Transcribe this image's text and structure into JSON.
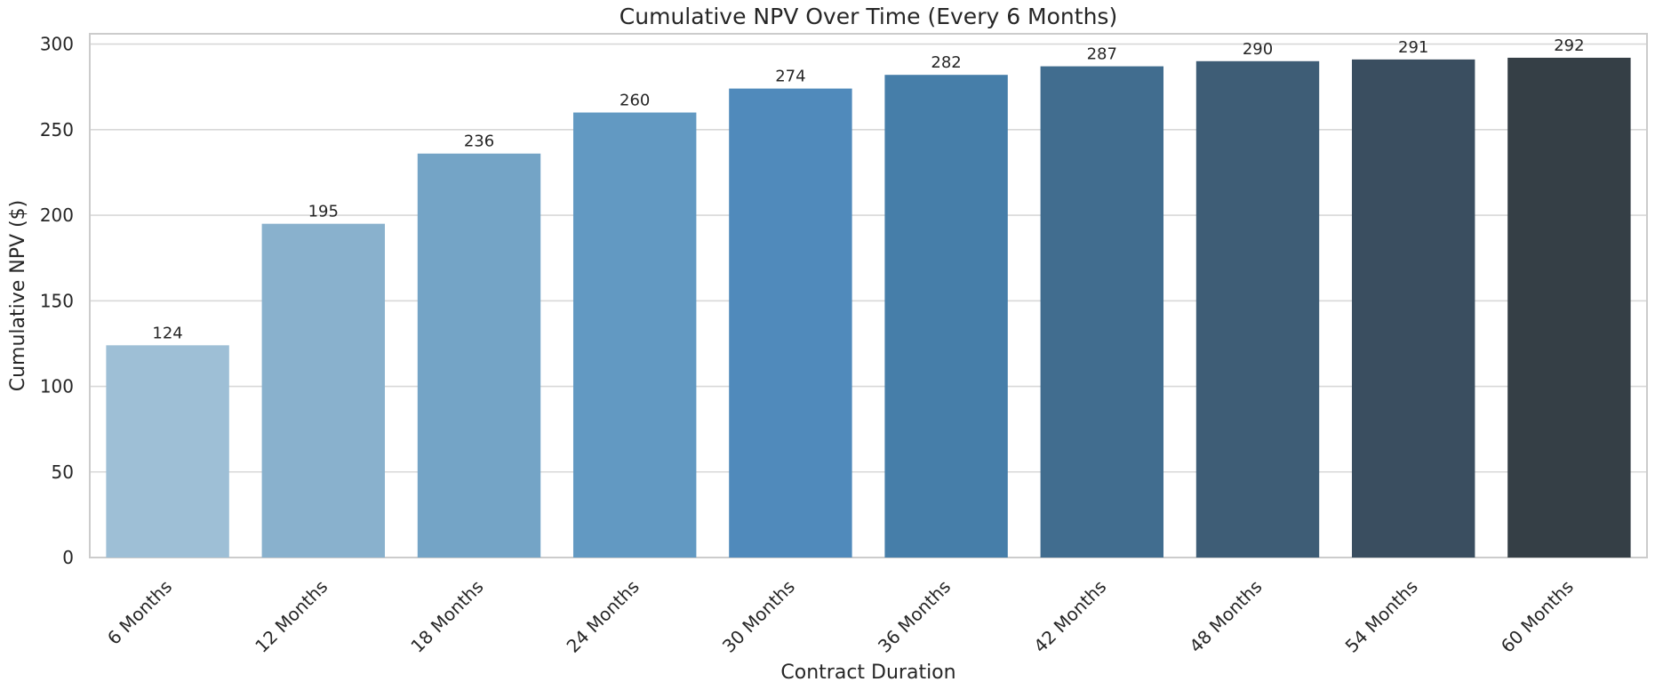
{
  "chart_data": {
    "type": "bar",
    "title": "Cumulative NPV Over Time (Every 6 Months)",
    "xlabel": "Contract Duration",
    "ylabel": "Cumulative NPV ($)",
    "categories": [
      "6 Months",
      "12 Months",
      "18 Months",
      "24 Months",
      "30 Months",
      "36 Months",
      "42 Months",
      "48 Months",
      "54 Months",
      "60 Months"
    ],
    "values": [
      124,
      195,
      236,
      260,
      274,
      282,
      287,
      290,
      291,
      292
    ],
    "data_labels": [
      "124",
      "195",
      "236",
      "260",
      "274",
      "282",
      "287",
      "290",
      "291",
      "292"
    ],
    "colors": [
      "#9ebfd6",
      "#89b1cd",
      "#74a4c6",
      "#6299c2",
      "#508abb",
      "#467ea9",
      "#416d8f",
      "#3e5d76",
      "#3a4e60",
      "#353f46"
    ],
    "ylim": [
      0,
      306
    ],
    "yticks": [
      0,
      50,
      100,
      150,
      200,
      250,
      300
    ],
    "ytick_labels": [
      "0",
      "50",
      "100",
      "150",
      "200",
      "250",
      "300"
    ],
    "grid": true,
    "grid_axis": "y",
    "legend": "none"
  }
}
